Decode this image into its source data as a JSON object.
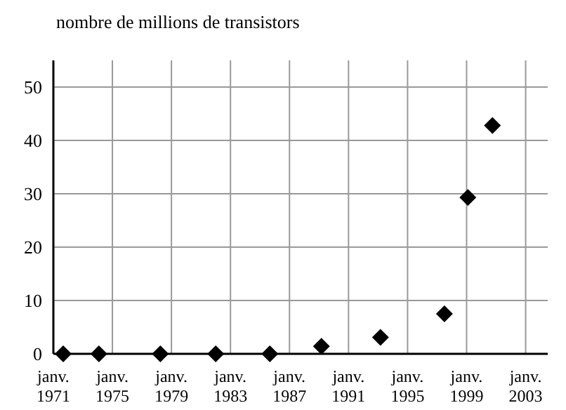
{
  "chart_data": {
    "type": "scatter",
    "ylabel": "nombre de millions de transistors",
    "x": [
      "1971-09",
      "1974-02",
      "1978-04",
      "1982-01",
      "1985-09",
      "1989-03",
      "1993-03",
      "1997-07",
      "1999-02",
      "2000-10"
    ],
    "series": [
      {
        "color": "#000000",
        "values": [
          0,
          0,
          0,
          0,
          0,
          1.4,
          3.1,
          7.5,
          29.3,
          42.8
        ]
      }
    ],
    "xlim": [
      "1971-01",
      "2004-07"
    ],
    "ylim": [
      0,
      55
    ],
    "xticks": [
      {
        "value": "1971-01",
        "label": "janv. 1971"
      },
      {
        "value": "1975-01",
        "label": "janv. 1975"
      },
      {
        "value": "1979-01",
        "label": "janv. 1979"
      },
      {
        "value": "1983-01",
        "label": "janv. 1983"
      },
      {
        "value": "1987-01",
        "label": "janv. 1987"
      },
      {
        "value": "1991-01",
        "label": "janv. 1991"
      },
      {
        "value": "1995-01",
        "label": "janv. 1995"
      },
      {
        "value": "1999-01",
        "label": "janv. 1999"
      },
      {
        "value": "2003-01",
        "label": "janv. 2003"
      }
    ],
    "yticks": [
      0,
      10,
      20,
      30,
      40,
      50
    ],
    "grid": true,
    "marker": "diamond",
    "legend": false
  }
}
